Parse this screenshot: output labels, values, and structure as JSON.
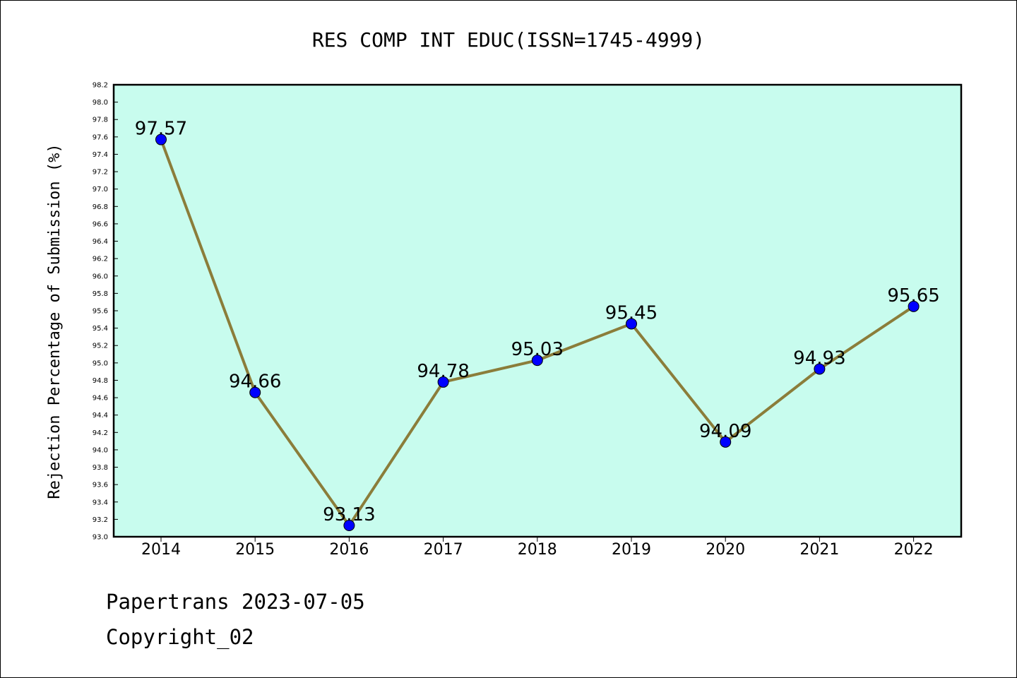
{
  "chart_data": {
    "type": "line",
    "title": "RES COMP INT EDUC(ISSN=1745-4999)",
    "xlabel": "",
    "ylabel": "Rejection Percentage of Submission (%)",
    "categories": [
      "2014",
      "2015",
      "2016",
      "2017",
      "2018",
      "2019",
      "2020",
      "2021",
      "2022"
    ],
    "values": [
      97.57,
      94.66,
      93.13,
      94.78,
      95.03,
      95.45,
      94.09,
      94.93,
      95.65
    ],
    "data_labels": [
      "97.57",
      "94.66",
      "93.13",
      "94.78",
      "95.03",
      "95.45",
      "94.09",
      "94.93",
      "95.65"
    ],
    "ylim": [
      93.0,
      98.2
    ],
    "ytick_step": 0.2,
    "grid": false,
    "legend": "none",
    "colors": {
      "plot_background": "#c8fcee",
      "line": "#8b7d3a",
      "marker": "#0000ff"
    }
  },
  "footer": {
    "line1": "Papertrans 2023-07-05",
    "line2": "Copyright_02"
  }
}
